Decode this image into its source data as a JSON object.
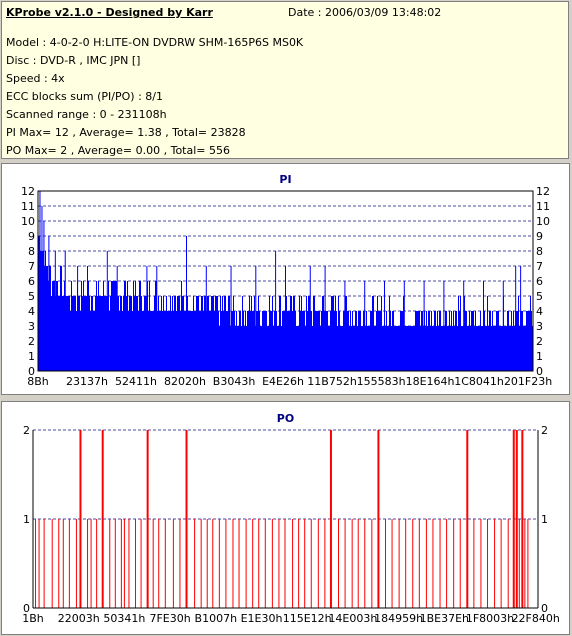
{
  "header": {
    "title": "KProbe v2.1.0 - Designed by Karr",
    "date": "Date : 2006/03/09 13:48:02",
    "model": "Model : 4-0-2-0 H:LITE-ON DVDRW SHM-165P6S MS0K",
    "disc": "Disc : DVD-R , IMC JPN []",
    "speed": "Speed : 4x",
    "ecc": "ECC blocks sum (PI/PO) : 8/1",
    "range": "Scanned range : 0 - 231108h",
    "pi_summary": "PI Max= 12 , Average= 1.38 , Total= 23828",
    "po_summary": "PO Max= 2 , Average= 0.00 , Total= 556"
  },
  "colors": {
    "pi_fill": "#0000ff",
    "po_line": "#ff0000",
    "grid": "#000080"
  },
  "chart_data": [
    {
      "type": "bar",
      "title": "PI",
      "ylim": [
        0,
        12
      ],
      "yticks": [
        "0",
        "1",
        "2",
        "3",
        "4",
        "5",
        "6",
        "7",
        "8",
        "9",
        "10",
        "11",
        "12"
      ],
      "xtick_labels": [
        "8Bh",
        "23137h",
        "52411h",
        "82020h",
        "B3043h",
        "E4E26h",
        "11B752h",
        "155583h",
        "18E164h",
        "1C8041h",
        "201F23h"
      ],
      "baseline": [
        [
          0,
          9
        ],
        [
          0.6,
          8
        ],
        [
          1.5,
          7
        ],
        [
          3,
          6
        ],
        [
          6,
          5
        ],
        [
          20,
          5
        ],
        [
          40,
          4
        ],
        [
          55,
          4
        ],
        [
          70,
          3.5
        ],
        [
          85,
          3.5
        ],
        [
          100,
          3.5
        ]
      ],
      "spikes": [
        [
          0.4,
          12
        ],
        [
          0.8,
          11
        ],
        [
          1.2,
          10
        ],
        [
          2.2,
          9
        ],
        [
          3.5,
          8
        ],
        [
          5.5,
          8
        ],
        [
          8,
          7
        ],
        [
          10,
          7
        ],
        [
          14,
          8
        ],
        [
          16,
          7
        ],
        [
          22,
          7
        ],
        [
          24,
          7
        ],
        [
          30,
          9
        ],
        [
          34,
          7
        ],
        [
          39,
          7
        ],
        [
          44,
          7
        ],
        [
          48,
          8
        ],
        [
          50,
          7
        ],
        [
          55,
          7
        ],
        [
          58,
          7
        ],
        [
          62,
          6
        ],
        [
          66,
          6
        ],
        [
          70,
          6
        ],
        [
          74,
          6
        ],
        [
          78,
          6
        ],
        [
          82,
          6
        ],
        [
          86,
          6
        ],
        [
          90,
          6
        ],
        [
          94,
          6
        ],
        [
          96.5,
          7
        ],
        [
          97.5,
          7
        ]
      ]
    },
    {
      "type": "bar",
      "title": "PO",
      "ylim": [
        0,
        2
      ],
      "yticks": [
        "0",
        "1",
        "2"
      ],
      "xtick_labels": [
        "1Bh",
        "22003h",
        "50341h",
        "7FE30h",
        "B1007h",
        "E1E30h",
        "115E12h",
        "14E003h",
        "184959h",
        "1BE37Eh",
        "1F8003h",
        "22F840h"
      ],
      "x_values": [
        0.5,
        1.2,
        2.2,
        3.8,
        5.1,
        6.0,
        7.2,
        8.6,
        9.4,
        10.8,
        11.5,
        12.6,
        13.8,
        15.2,
        16.3,
        17.5,
        18.1,
        19.0,
        20.3,
        21.4,
        22.7,
        23.8,
        24.9,
        26.2,
        27.8,
        29.1,
        30.4,
        32.0,
        33.3,
        34.5,
        35.6,
        36.9,
        38.2,
        39.6,
        40.8,
        42.2,
        43.5,
        44.7,
        46.0,
        47.4,
        48.7,
        49.9,
        51.4,
        52.6,
        53.8,
        55.1,
        56.5,
        57.8,
        59.0,
        60.5,
        61.8,
        63.2,
        64.4,
        65.7,
        67.1,
        68.4,
        69.8,
        71.1,
        72.5,
        73.8,
        75.2,
        76.5,
        77.9,
        79.2,
        80.6,
        81.9,
        83.3,
        84.6,
        86.0,
        87.3,
        88.7,
        90.0,
        91.4,
        92.7,
        94.1,
        95.2,
        95.8,
        96.3,
        96.9,
        97.4,
        98.0
      ],
      "values": [
        1,
        1,
        1,
        1,
        1,
        1,
        1,
        1,
        2,
        1,
        1,
        1,
        2,
        1,
        1,
        1,
        1,
        1,
        1,
        1,
        2,
        1,
        1,
        1,
        1,
        1,
        2,
        1,
        1,
        1,
        1,
        1,
        1,
        1,
        1,
        1,
        1,
        1,
        1,
        1,
        1,
        1,
        1,
        1,
        1,
        1,
        1,
        1,
        2,
        1,
        1,
        1,
        1,
        1,
        1,
        2,
        1,
        1,
        1,
        1,
        1,
        1,
        1,
        1,
        1,
        1,
        1,
        1,
        2,
        1,
        1,
        1,
        1,
        1,
        1,
        2,
        2,
        1,
        2,
        1,
        1
      ]
    }
  ]
}
